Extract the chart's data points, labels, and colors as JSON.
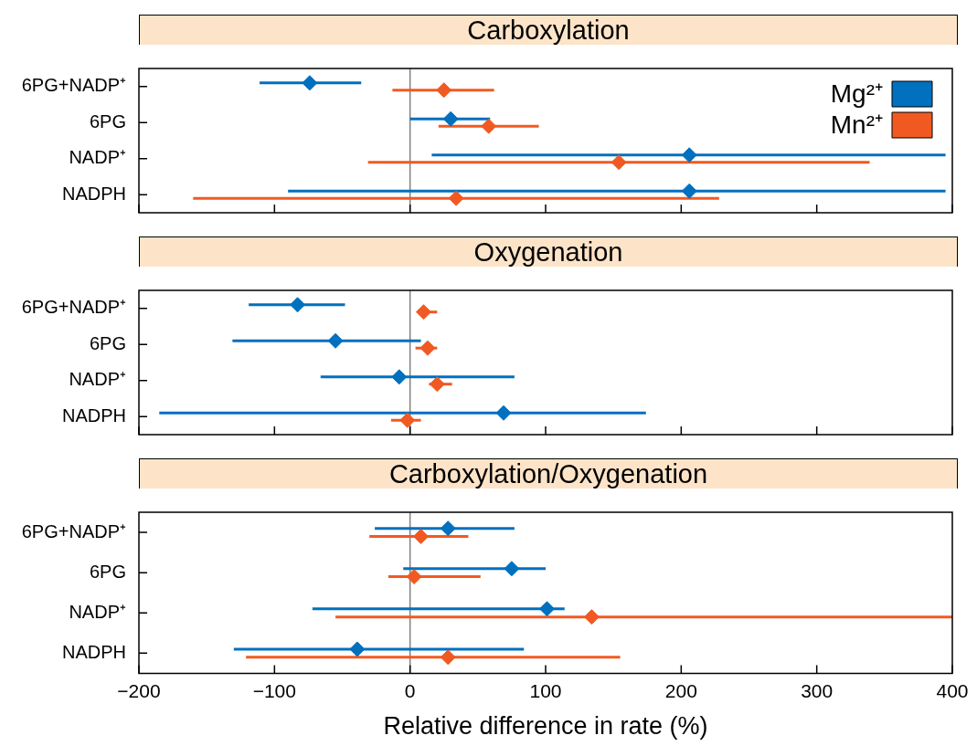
{
  "chart_data": [
    {
      "type": "scatter",
      "orientation": "horizontal",
      "title": "Carboxylation",
      "categories": [
        "6PG+NADP⁺",
        "6PG",
        "NADP⁺",
        "NADPH"
      ],
      "series": [
        {
          "name": "Mg²⁺",
          "color": "#0070bf",
          "values": [
            -74,
            30,
            206,
            206
          ],
          "errors": [
            [
              -111,
              -36
            ],
            [
              0,
              59
            ],
            [
              16,
              395
            ],
            [
              -90,
              395
            ]
          ]
        },
        {
          "name": "Mn²⁺",
          "color": "#f05a22",
          "values": [
            25,
            58,
            154,
            34
          ],
          "errors": [
            [
              -13,
              62
            ],
            [
              21,
              95
            ],
            [
              -31,
              339
            ],
            [
              -160,
              228
            ]
          ]
        }
      ],
      "xlim": [
        -200,
        400
      ],
      "xticks": [
        -200,
        -100,
        0,
        100,
        200,
        300,
        400
      ],
      "tick_labels": "y",
      "ref_lines": [
        {
          "axis": "x",
          "value": 0,
          "color": "#808080"
        }
      ],
      "marker": "diamond",
      "legend": "top right",
      "grid": false
    },
    {
      "type": "scatter",
      "orientation": "horizontal",
      "title": "Oxygenation",
      "categories": [
        "6PG+NADP⁺",
        "6PG",
        "NADP⁺",
        "NADPH"
      ],
      "series": [
        {
          "color": "#0070bf",
          "values": [
            -83,
            -55,
            -8,
            69
          ],
          "errors": [
            [
              -119,
              -48
            ],
            [
              -131,
              8
            ],
            [
              -66,
              77
            ],
            [
              -185,
              174
            ]
          ]
        },
        {
          "color": "#f05a22",
          "values": [
            10,
            13,
            20,
            -2
          ],
          "errors": [
            [
              6,
              20
            ],
            [
              4,
              20
            ],
            [
              14,
              31
            ],
            [
              -14,
              8
            ]
          ]
        }
      ],
      "xlim": [
        -200,
        400
      ],
      "xticks": [
        -200,
        -100,
        0,
        100,
        200,
        300,
        400
      ],
      "tick_labels": "y",
      "ref_lines": [
        {
          "axis": "x",
          "value": 0,
          "color": "#808080"
        }
      ],
      "marker": "diamond",
      "grid": false
    },
    {
      "type": "scatter",
      "orientation": "horizontal",
      "title": "Carboxylation/Oxygenation",
      "categories": [
        "6PG+NADP⁺",
        "6PG",
        "NADP⁺",
        "NADPH"
      ],
      "series": [
        {
          "color": "#0070bf",
          "values": [
            28,
            75,
            101,
            -39
          ],
          "errors": [
            [
              -26,
              77
            ],
            [
              -5,
              100
            ],
            [
              -72,
              114
            ],
            [
              -130,
              84
            ]
          ]
        },
        {
          "color": "#f05a22",
          "values": [
            8,
            3,
            134,
            28
          ],
          "errors": [
            [
              -30,
              43
            ],
            [
              -16,
              52
            ],
            [
              -55,
              400
            ],
            [
              -121,
              155
            ]
          ]
        }
      ],
      "xlim": [
        -200,
        400
      ],
      "xticks": [
        {
          "value": -200,
          "label": "−200"
        },
        {
          "value": -100,
          "label": "−100"
        },
        0,
        100,
        200,
        300,
        400
      ],
      "xlabel": "Relative difference in rate (%)",
      "ref_lines": [
        {
          "axis": "x",
          "value": 0,
          "color": "#808080"
        }
      ],
      "marker": "diamond",
      "grid": false
    }
  ]
}
